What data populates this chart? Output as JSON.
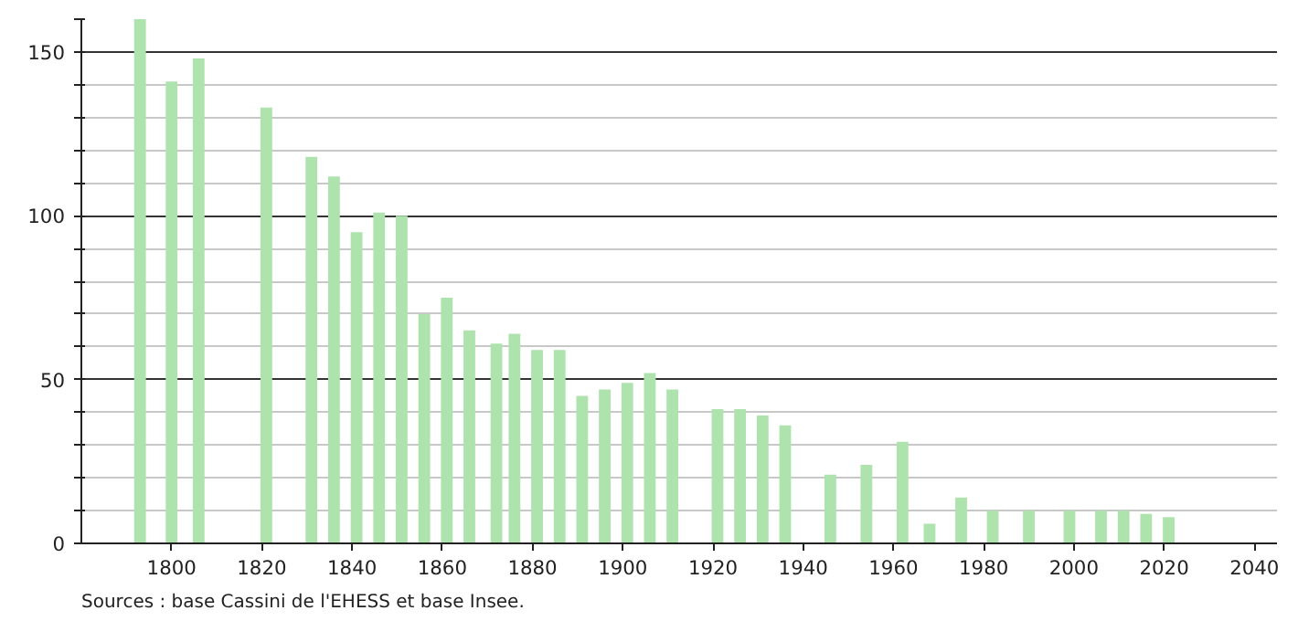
{
  "chart_data": {
    "type": "bar",
    "x": [
      1793,
      1800,
      1806,
      1821,
      1831,
      1836,
      1841,
      1846,
      1851,
      1856,
      1861,
      1866,
      1872,
      1876,
      1881,
      1886,
      1891,
      1896,
      1901,
      1906,
      1911,
      1921,
      1926,
      1931,
      1936,
      1946,
      1954,
      1962,
      1968,
      1975,
      1982,
      1990,
      1999,
      2006,
      2011,
      2016,
      2021
    ],
    "values": [
      160,
      141,
      148,
      133,
      118,
      112,
      95,
      101,
      100,
      70,
      75,
      65,
      61,
      64,
      59,
      59,
      45,
      47,
      49,
      52,
      47,
      41,
      41,
      39,
      36,
      21,
      24,
      31,
      6,
      14,
      10,
      10,
      10,
      10,
      10,
      9,
      8
    ],
    "color": "#aee3ae",
    "xlim": [
      1780,
      2045
    ],
    "xticks": [
      1800,
      1820,
      1840,
      1860,
      1880,
      1900,
      1920,
      1940,
      1960,
      1980,
      2000,
      2020,
      2040
    ],
    "ylim": [
      0,
      160
    ],
    "yticks": [
      0,
      {
        "value": 10,
        "label": null
      },
      {
        "value": 20,
        "label": null
      },
      {
        "value": 30,
        "label": null
      },
      {
        "value": 40,
        "label": null
      },
      50,
      {
        "value": 60,
        "label": null
      },
      {
        "value": 70,
        "label": null
      },
      {
        "value": 80,
        "label": null
      },
      {
        "value": 90,
        "label": null
      },
      100,
      {
        "value": 110,
        "label": null
      },
      {
        "value": 120,
        "label": null
      },
      {
        "value": 130,
        "label": null
      },
      {
        "value": 140,
        "label": null
      },
      150,
      {
        "value": 160,
        "label": null
      }
    ],
    "grid": "y",
    "annotations": [
      "Sources : base Cassini de l'EHESS et base Insee."
    ]
  }
}
